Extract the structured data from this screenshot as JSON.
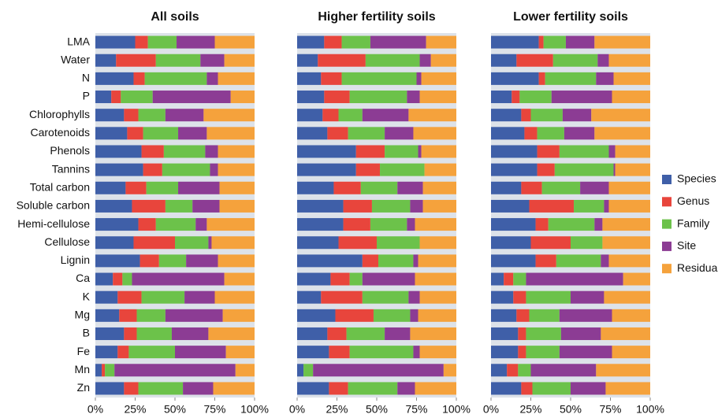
{
  "chart_data": [
    {
      "type": "bar",
      "stacked": true,
      "orientation": "horizontal",
      "title": "All soils",
      "categories": [
        "LMA",
        "Water",
        "N",
        "P",
        "Chlorophylls",
        "Carotenoids",
        "Phenols",
        "Tannins",
        "Total carbon",
        "Soluble carbon",
        "Hemi-cellulose",
        "Cellulose",
        "Lignin",
        "Ca",
        "K",
        "Mg",
        "B",
        "Fe",
        "Mn",
        "Zn"
      ],
      "series": [
        {
          "name": "Species",
          "color": "#3f5fa8",
          "values": [
            25,
            13,
            24,
            10,
            18,
            20,
            29,
            30,
            19,
            23,
            27,
            24,
            28,
            11,
            14,
            15,
            18,
            14,
            4,
            18
          ]
        },
        {
          "name": "Genus",
          "color": "#e8453c",
          "values": [
            8,
            25,
            7,
            6,
            9,
            10,
            14,
            12,
            13,
            21,
            11,
            26,
            12,
            6,
            15,
            11,
            8,
            7,
            2,
            9
          ]
        },
        {
          "name": "Family",
          "color": "#6cc24a",
          "values": [
            18,
            28,
            39,
            20,
            17,
            22,
            26,
            30,
            20,
            17,
            25,
            21,
            17,
            6,
            27,
            18,
            22,
            29,
            6,
            28
          ]
        },
        {
          "name": "Site",
          "color": "#8c3c94",
          "values": [
            24,
            15,
            7,
            49,
            24,
            18,
            8,
            5,
            26,
            17,
            7,
            2,
            20,
            58,
            19,
            36,
            23,
            32,
            76,
            19
          ]
        },
        {
          "name": "Residual",
          "color": "#f5a23c",
          "values": [
            25,
            19,
            23,
            15,
            32,
            30,
            23,
            23,
            22,
            22,
            30,
            27,
            23,
            19,
            25,
            20,
            29,
            18,
            12,
            26
          ]
        }
      ],
      "xlim": [
        0,
        100
      ],
      "xticks": [
        {
          "value": 0,
          "label": "0%"
        },
        {
          "value": 25,
          "label": "25%"
        },
        {
          "value": 50,
          "label": "50%"
        },
        {
          "value": 75,
          "label": "75%"
        },
        {
          "value": 100,
          "label": "100%"
        }
      ]
    },
    {
      "type": "bar",
      "stacked": true,
      "orientation": "horizontal",
      "title": "Higher fertility soils",
      "series": [
        {
          "values": [
            17,
            13,
            15,
            17,
            16,
            19,
            37,
            37,
            23,
            29,
            29,
            26,
            41,
            21,
            15,
            24,
            19,
            20,
            4,
            20
          ]
        },
        {
          "values": [
            11,
            30,
            13,
            16,
            10,
            13,
            18,
            15,
            17,
            18,
            17,
            24,
            10,
            12,
            26,
            24,
            12,
            13,
            0,
            12
          ]
        },
        {
          "values": [
            18,
            34,
            47,
            36,
            15,
            23,
            21,
            28,
            23,
            24,
            23,
            27,
            22,
            8,
            29,
            23,
            24,
            40,
            6,
            31
          ]
        },
        {
          "values": [
            35,
            7,
            3,
            8,
            29,
            18,
            2,
            0,
            16,
            8,
            5,
            0,
            3,
            33,
            7,
            5,
            16,
            4,
            82,
            11
          ]
        },
        {
          "values": [
            19,
            16,
            22,
            23,
            30,
            27,
            22,
            20,
            21,
            21,
            26,
            23,
            24,
            26,
            23,
            24,
            29,
            23,
            8,
            26
          ]
        }
      ],
      "xlim": [
        0,
        100
      ],
      "xticks": [
        {
          "value": 0,
          "label": "0%"
        },
        {
          "value": 25,
          "label": "25%"
        },
        {
          "value": 50,
          "label": "50%"
        },
        {
          "value": 75,
          "label": "75%"
        },
        {
          "value": 100,
          "label": "100%"
        }
      ]
    },
    {
      "type": "bar",
      "stacked": true,
      "orientation": "horizontal",
      "title": "Lower fertility soils",
      "series": [
        {
          "values": [
            30,
            16,
            30,
            13,
            19,
            21,
            29,
            29,
            19,
            24,
            28,
            25,
            28,
            8,
            14,
            16,
            17,
            17,
            10,
            19
          ]
        },
        {
          "values": [
            3,
            23,
            4,
            5,
            6,
            8,
            14,
            11,
            13,
            28,
            8,
            25,
            13,
            6,
            8,
            8,
            5,
            5,
            7,
            7
          ]
        },
        {
          "values": [
            14,
            28,
            32,
            20,
            20,
            17,
            31,
            37,
            24,
            19,
            29,
            20,
            28,
            8,
            28,
            19,
            22,
            21,
            8,
            24
          ]
        },
        {
          "values": [
            18,
            7,
            11,
            38,
            18,
            19,
            4,
            1,
            18,
            3,
            5,
            0,
            5,
            61,
            21,
            33,
            25,
            33,
            41,
            22
          ]
        },
        {
          "values": [
            35,
            26,
            23,
            24,
            37,
            35,
            22,
            22,
            26,
            26,
            30,
            30,
            26,
            17,
            29,
            24,
            31,
            24,
            34,
            28
          ]
        }
      ],
      "xlim": [
        0,
        100
      ],
      "xticks": [
        {
          "value": 0,
          "label": "0%"
        },
        {
          "value": 25,
          "label": "25%"
        },
        {
          "value": 50,
          "label": "50%"
        },
        {
          "value": 75,
          "label": "75%"
        },
        {
          "value": 100,
          "label": "100%"
        }
      ]
    }
  ],
  "legend": {
    "position": "right"
  }
}
